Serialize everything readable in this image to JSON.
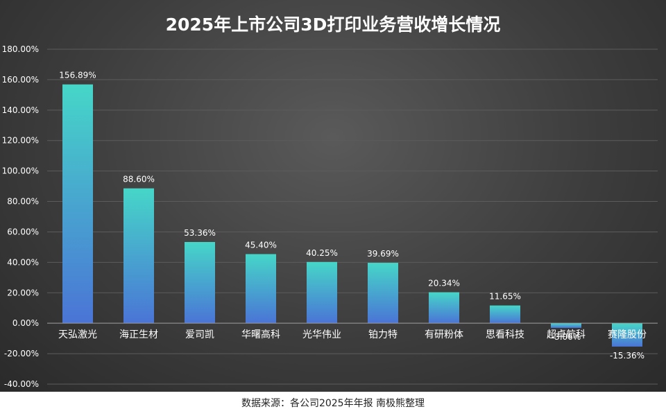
{
  "chart_data": {
    "type": "bar",
    "title": "2025年上市公司3D打印业务营收增长情况",
    "categories": [
      "天弘激光",
      "海正生材",
      "爱司凯",
      "华曙高科",
      "光华伟业",
      "铂力特",
      "有研粉体",
      "思看科技",
      "超卓航科",
      "赛隆股份"
    ],
    "values": [
      156.89,
      88.6,
      53.36,
      45.4,
      40.25,
      39.69,
      20.34,
      11.65,
      -3.06,
      -15.36
    ],
    "data_labels": [
      "156.89%",
      "88.60%",
      "53.36%",
      "45.40%",
      "40.25%",
      "39.69%",
      "20.34%",
      "11.65%",
      "-3.06%",
      "-15.36%"
    ],
    "ylim": [
      -40,
      180
    ],
    "yticks": [
      -40,
      -20,
      0,
      20,
      40,
      60,
      80,
      100,
      120,
      140,
      160,
      180
    ],
    "ytick_labels": [
      "-40.00%",
      "-20.00%",
      "0.00%",
      "20.00%",
      "40.00%",
      "60.00%",
      "80.00%",
      "100.00%",
      "120.00%",
      "140.00%",
      "160.00%",
      "180.00%"
    ],
    "xlabel": "",
    "ylabel": "",
    "grid": true,
    "legend": "none",
    "colors": {
      "bar_top": "#46d6c8",
      "bar_bottom": "#4a74d6",
      "background": "#3d3d3d",
      "text": "#ffffff",
      "grid": "#5c5c5c"
    }
  },
  "footer": {
    "source": "数据来源：各公司2025年年报 南极熊整理"
  }
}
